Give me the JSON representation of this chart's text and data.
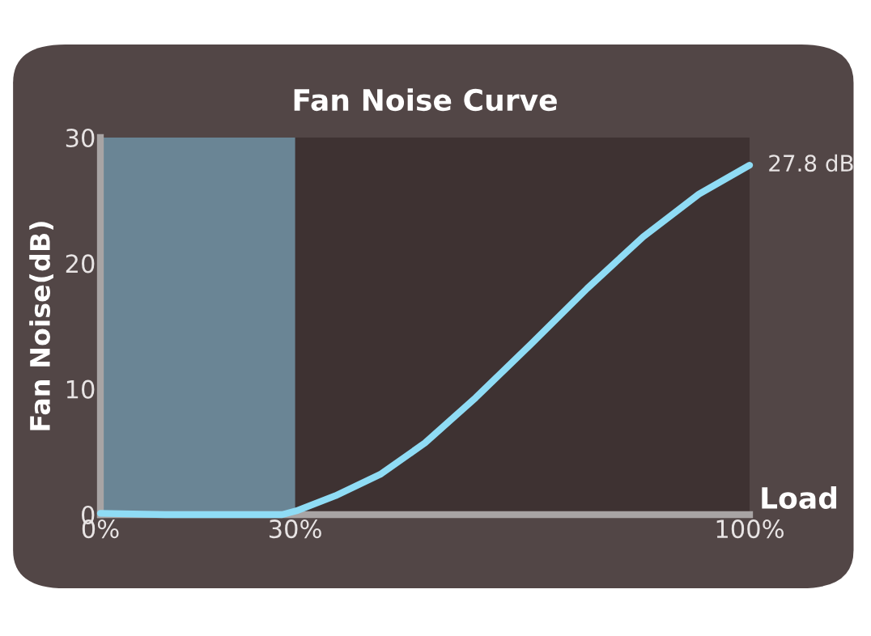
{
  "chart_data": {
    "type": "line",
    "title": "Fan Noise Curve",
    "xlabel": "Load",
    "ylabel": "Fan Noise(dB)",
    "x": [
      0,
      10,
      20,
      28,
      30.2,
      36.2,
      43.1,
      50,
      57.8,
      66.4,
      75,
      83.6,
      92.2,
      100
    ],
    "series": [
      {
        "color": "#8fdcf5",
        "values": [
          0.1,
          0,
          0,
          0,
          0.3,
          1.5,
          3.2,
          5.7,
          9.3,
          13.6,
          18,
          22.1,
          25.5,
          27.8
        ]
      }
    ],
    "xlim": [
      0,
      100
    ],
    "ylim": [
      0,
      30
    ],
    "xticks": [
      {
        "value": 0,
        "label": "0%"
      },
      {
        "value": 30,
        "label": "30%"
      },
      {
        "value": 100,
        "label": "100%"
      }
    ],
    "yticks": [
      0,
      10,
      20,
      30
    ],
    "bands": [
      {
        "axis": "x",
        "from": 0,
        "to": 30,
        "color": "#6a8595"
      }
    ],
    "annotations": [
      {
        "text": "27.8 dB",
        "x": 100,
        "y": 27.8
      }
    ],
    "grid": false,
    "legend": false,
    "marker": "none",
    "line_style": "solid"
  }
}
